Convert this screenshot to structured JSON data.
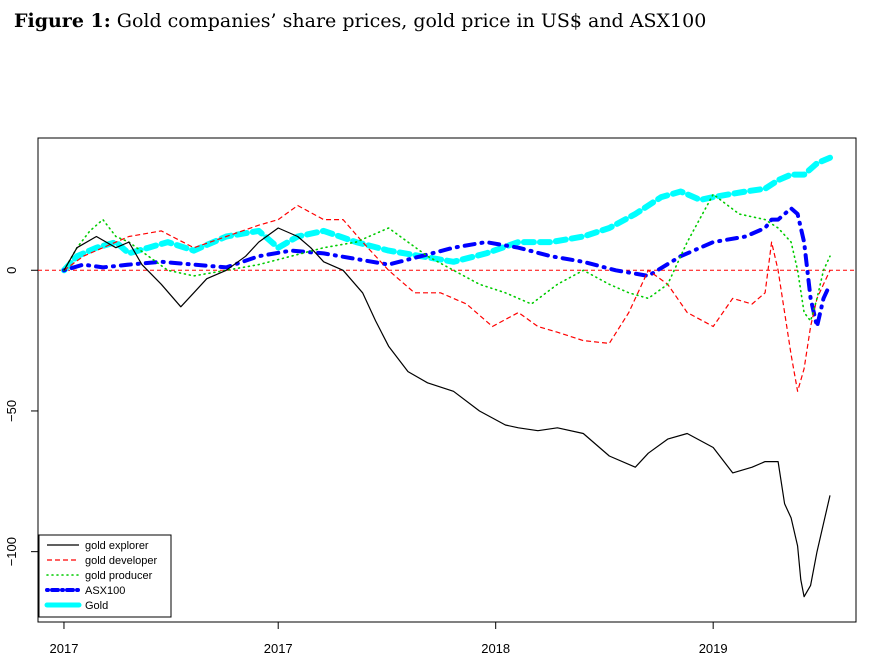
{
  "figure": {
    "label": "Figure 1:",
    "caption": "Gold companies’ share prices, gold price in US$ and ASX100"
  },
  "chart_data": {
    "type": "line",
    "title": "",
    "xlabel": "",
    "ylabel": "",
    "ylim": [
      -125,
      47
    ],
    "x_ticks": [
      {
        "x": 0,
        "label": "2017"
      },
      {
        "x": 0.33,
        "label": "2017"
      },
      {
        "x": 0.665,
        "label": "2018"
      },
      {
        "x": 1.0,
        "label": "2019"
      }
    ],
    "y_ticks": [
      {
        "y": 0,
        "label": "0"
      },
      {
        "y": -50,
        "label": "−50"
      },
      {
        "y": -100,
        "label": "−100"
      }
    ],
    "reference_line": {
      "y": 0,
      "color": "#ff0000",
      "style": "dashed"
    },
    "legend_position": "bottom-left",
    "x_range": [
      -0.04,
      1.22
    ],
    "series": [
      {
        "name": "gold explorer",
        "color": "#000000",
        "style": "solid",
        "x": [
          0.0,
          0.02,
          0.05,
          0.08,
          0.1,
          0.12,
          0.15,
          0.18,
          0.2,
          0.22,
          0.25,
          0.28,
          0.3,
          0.33,
          0.36,
          0.38,
          0.4,
          0.43,
          0.46,
          0.48,
          0.5,
          0.53,
          0.56,
          0.6,
          0.64,
          0.68,
          0.7,
          0.73,
          0.76,
          0.8,
          0.84,
          0.88,
          0.9,
          0.93,
          0.96,
          1.0,
          1.03,
          1.06,
          1.08,
          1.1,
          1.11,
          1.12,
          1.13,
          1.135,
          1.14,
          1.15,
          1.16,
          1.17,
          1.18
        ],
        "values": [
          0,
          8,
          12,
          8,
          10,
          2,
          -5,
          -13,
          -8,
          -3,
          0,
          5,
          10,
          15,
          12,
          8,
          3,
          0,
          -8,
          -18,
          -27,
          -36,
          -40,
          -43,
          -50,
          -55,
          -56,
          -57,
          -56,
          -58,
          -66,
          -70,
          -65,
          -60,
          -58,
          -63,
          -72,
          -70,
          -68,
          -68,
          -83,
          -88,
          -98,
          -110,
          -116,
          -112,
          -100,
          -90,
          -80
        ]
      },
      {
        "name": "gold developer",
        "color": "#ff0000",
        "style": "dashed",
        "x": [
          0.0,
          0.03,
          0.06,
          0.1,
          0.15,
          0.2,
          0.25,
          0.3,
          0.33,
          0.36,
          0.4,
          0.43,
          0.46,
          0.5,
          0.54,
          0.58,
          0.62,
          0.66,
          0.7,
          0.73,
          0.76,
          0.8,
          0.84,
          0.87,
          0.9,
          0.93,
          0.96,
          1.0,
          1.03,
          1.06,
          1.08,
          1.09,
          1.1,
          1.11,
          1.12,
          1.13,
          1.14,
          1.15,
          1.16,
          1.17,
          1.18
        ],
        "values": [
          0,
          5,
          8,
          12,
          14,
          8,
          12,
          16,
          18,
          23,
          18,
          18,
          10,
          0,
          -8,
          -8,
          -12,
          -20,
          -15,
          -20,
          -22,
          -25,
          -26,
          -15,
          0,
          -5,
          -15,
          -20,
          -10,
          -12,
          -8,
          10,
          0,
          -15,
          -30,
          -43,
          -35,
          -20,
          -10,
          -5,
          0
        ]
      },
      {
        "name": "gold producer",
        "color": "#00cc00",
        "style": "dotted",
        "x": [
          0.0,
          0.02,
          0.04,
          0.06,
          0.08,
          0.1,
          0.13,
          0.16,
          0.2,
          0.25,
          0.3,
          0.35,
          0.4,
          0.45,
          0.5,
          0.53,
          0.56,
          0.6,
          0.64,
          0.68,
          0.72,
          0.76,
          0.8,
          0.84,
          0.87,
          0.9,
          0.93,
          0.96,
          1.0,
          1.04,
          1.08,
          1.1,
          1.12,
          1.13,
          1.14,
          1.15,
          1.16,
          1.17,
          1.18
        ],
        "values": [
          0,
          8,
          14,
          18,
          12,
          10,
          5,
          0,
          -2,
          0,
          2,
          5,
          8,
          10,
          15,
          10,
          5,
          0,
          -5,
          -8,
          -12,
          -5,
          0,
          -5,
          -8,
          -10,
          -5,
          10,
          27,
          20,
          18,
          15,
          10,
          0,
          -15,
          -18,
          -10,
          0,
          5
        ]
      },
      {
        "name": "ASX100",
        "color": "#0000ff",
        "style": "dotdash",
        "x": [
          0.0,
          0.03,
          0.06,
          0.1,
          0.15,
          0.2,
          0.25,
          0.3,
          0.35,
          0.4,
          0.45,
          0.5,
          0.55,
          0.6,
          0.65,
          0.7,
          0.75,
          0.8,
          0.85,
          0.9,
          0.95,
          1.0,
          1.05,
          1.08,
          1.09,
          1.1,
          1.11,
          1.12,
          1.13,
          1.14,
          1.15,
          1.16,
          1.17,
          1.18
        ],
        "values": [
          0,
          2,
          1,
          2,
          3,
          2,
          1,
          5,
          7,
          6,
          4,
          2,
          5,
          8,
          10,
          8,
          5,
          3,
          0,
          -2,
          5,
          10,
          12,
          15,
          18,
          18,
          20,
          22,
          20,
          10,
          -10,
          -20,
          -10,
          -5
        ]
      },
      {
        "name": "Gold",
        "color": "#00ffff",
        "style": "thick",
        "x": [
          0.0,
          0.02,
          0.05,
          0.08,
          0.1,
          0.13,
          0.16,
          0.2,
          0.25,
          0.3,
          0.33,
          0.36,
          0.4,
          0.45,
          0.5,
          0.55,
          0.6,
          0.65,
          0.7,
          0.75,
          0.8,
          0.84,
          0.88,
          0.92,
          0.95,
          0.98,
          1.0,
          1.05,
          1.08,
          1.1,
          1.12,
          1.14,
          1.16,
          1.18
        ],
        "values": [
          0,
          5,
          8,
          10,
          6,
          8,
          10,
          7,
          12,
          14,
          8,
          12,
          14,
          10,
          7,
          5,
          3,
          6,
          10,
          10,
          12,
          15,
          20,
          26,
          28,
          25,
          26,
          28,
          29,
          32,
          34,
          34,
          38,
          40
        ]
      }
    ]
  }
}
